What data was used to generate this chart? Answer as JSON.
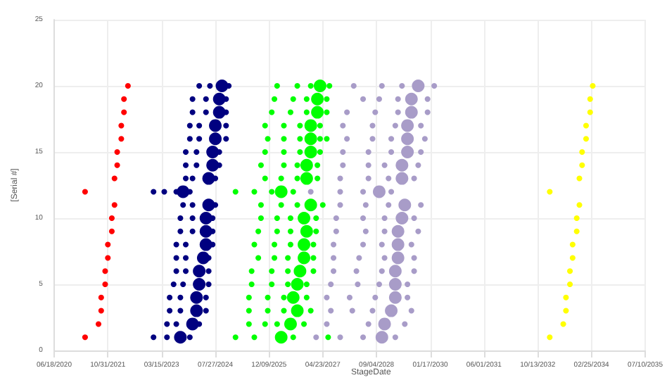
{
  "chart_data": {
    "type": "bubble",
    "xlabel": "StageDate",
    "ylabel": "[Serial #]",
    "xlim": [
      "2020-06-18",
      "2035-07-10"
    ],
    "xticks": [
      {
        "value": "2020-06-18",
        "label": "06/18/2020"
      },
      {
        "value": "2021-10-31",
        "label": "10/31/2021"
      },
      {
        "value": "2023-03-15",
        "label": "03/15/2023"
      },
      {
        "value": "2024-07-27",
        "label": "07/27/2024"
      },
      {
        "value": "2025-12-09",
        "label": "12/09/2025"
      },
      {
        "value": "2027-04-23",
        "label": "04/23/2027"
      },
      {
        "value": "2028-09-04",
        "label": "09/04/2028"
      },
      {
        "value": "2030-01-17",
        "label": "01/17/2030"
      },
      {
        "value": "2031-06-01",
        "label": "06/01/2031"
      },
      {
        "value": "2032-10-13",
        "label": "10/13/2032"
      },
      {
        "value": "2034-02-25",
        "label": "02/25/2034"
      },
      {
        "value": "2035-07-10",
        "label": "07/10/2035"
      }
    ],
    "ylim": [
      0,
      25
    ],
    "yticks": [
      0,
      5,
      10,
      15,
      20,
      25
    ],
    "grid": true,
    "series": [
      {
        "color": "#ff0000",
        "x": [
          "2021-04-02",
          "2021-08-05",
          "2021-08-30",
          "2021-08-30",
          "2021-10-06",
          "2021-10-06",
          "2021-10-31",
          "2021-10-31",
          "2021-12-07",
          "2021-12-07",
          "2022-01-01",
          "2021-04-02",
          "2022-01-01",
          "2022-01-26",
          "2022-01-26",
          "2022-03-05",
          "2022-03-05",
          "2022-03-30",
          "2022-03-30",
          "2022-05-06"
        ],
        "values": [
          1,
          2,
          3,
          4,
          5,
          6,
          7,
          8,
          9,
          10,
          11,
          12,
          13,
          14,
          15,
          16,
          17,
          18,
          19,
          20
        ],
        "sizes": [
          0.2,
          0.2,
          0.2,
          0.2,
          0.2,
          0.2,
          0.2,
          0.2,
          0.2,
          0.2,
          0.2,
          0.2,
          0.2,
          0.2,
          0.2,
          0.2,
          0.2,
          0.2,
          0.2,
          0.2
        ]
      },
      {
        "color": "#000080",
        "x": [
          "2022-12-30",
          "2023-05-04",
          "2023-09-06",
          "2023-12-03",
          "2023-05-04",
          "2023-07-30",
          "2023-12-28",
          "2024-02-28",
          "2023-05-29",
          "2023-09-06",
          "2024-02-03",
          "2024-05-01",
          "2023-05-29",
          "2023-09-06",
          "2024-02-03",
          "2024-05-01",
          "2023-07-05",
          "2023-10-01",
          "2024-02-28",
          "2024-05-26",
          "2023-07-30",
          "2023-10-26",
          "2024-02-28",
          "2024-05-26",
          "2023-07-30",
          "2023-10-26",
          "2024-04-06",
          "2024-05-26",
          "2023-07-30",
          "2023-10-26",
          "2024-05-01",
          "2024-07-02",
          "2023-09-06",
          "2023-12-28",
          "2024-05-01",
          "2024-07-02",
          "2023-09-06",
          "2023-12-28",
          "2024-05-01",
          "2024-07-02",
          "2023-10-01",
          "2023-12-28",
          "2024-05-26",
          "2024-07-27",
          "2022-12-30",
          "2023-04-09",
          "2023-07-30",
          "2023-10-01",
          "2023-12-03",
          "2023-10-26",
          "2023-12-28",
          "2024-05-26",
          "2024-07-27",
          "2023-10-26",
          "2024-02-03",
          "2024-07-02",
          "2024-09-02",
          "2023-10-26",
          "2024-02-03",
          "2024-07-02",
          "2024-09-02",
          "2023-12-03",
          "2024-02-28",
          "2024-07-27",
          "2024-11-04",
          "2023-12-03",
          "2024-02-28",
          "2024-07-27",
          "2024-11-04",
          "2023-12-28",
          "2024-05-01",
          "2024-09-02",
          "2024-11-04",
          "2023-12-28",
          "2024-05-01",
          "2024-09-02",
          "2024-11-04",
          "2024-02-28",
          "2024-06-07",
          "2024-09-27",
          "2024-11-29"
        ],
        "values": [
          1,
          1,
          1,
          1,
          2,
          2,
          2,
          2,
          3,
          3,
          3,
          3,
          4,
          4,
          4,
          4,
          5,
          5,
          5,
          5,
          6,
          6,
          6,
          6,
          7,
          7,
          7,
          7,
          8,
          8,
          8,
          8,
          9,
          9,
          9,
          9,
          10,
          10,
          10,
          10,
          11,
          11,
          11,
          11,
          12,
          12,
          12,
          12,
          12,
          13,
          13,
          13,
          13,
          14,
          14,
          14,
          14,
          15,
          15,
          15,
          15,
          16,
          16,
          16,
          16,
          17,
          17,
          17,
          17,
          18,
          18,
          18,
          18,
          19,
          19,
          19,
          19,
          20,
          20,
          20,
          20
        ],
        "sizes": [
          0.2,
          0.2,
          1,
          0.2,
          0.2,
          0.2,
          1,
          0.2,
          0.2,
          0.2,
          1,
          0.2,
          0.2,
          0.2,
          1,
          0.2,
          0.2,
          0.2,
          1,
          0.2,
          0.2,
          0.2,
          1,
          0.2,
          0.2,
          0.2,
          1,
          0.2,
          0.2,
          0.2,
          1,
          0.2,
          0.2,
          0.2,
          1,
          0.2,
          0.2,
          0.2,
          1,
          0.2,
          0.2,
          0.2,
          1,
          0.2,
          0.2,
          0.2,
          0.2,
          1,
          0.2,
          0.2,
          0.2,
          1,
          0.2,
          0.2,
          0.2,
          1,
          0.2,
          0.2,
          0.2,
          1,
          0.2,
          0.2,
          0.2,
          1,
          0.2,
          0.2,
          0.2,
          1,
          0.2,
          0.2,
          0.2,
          1,
          0.2,
          0.2,
          0.2,
          1,
          0.2,
          0.2,
          0.2,
          1,
          0.2
        ]
      },
      {
        "color": "#00ff00",
        "x": [
          "2025-01-31",
          "2025-07-25",
          "2026-04-01",
          "2026-07-22",
          "2027-06-12",
          "2025-06-05",
          "2025-11-02",
          "2026-02-22",
          "2026-06-27",
          "2026-10-30",
          "2025-06-05",
          "2025-11-27",
          "2026-04-26",
          "2026-08-29",
          "2027-01-01",
          "2025-06-05",
          "2025-11-27",
          "2026-04-26",
          "2026-07-22",
          "2026-11-24",
          "2025-06-30",
          "2026-01-03",
          "2026-06-02",
          "2026-08-29",
          "2026-11-24",
          "2025-06-30",
          "2026-01-03",
          "2026-06-02",
          "2026-09-23",
          "2027-01-26",
          "2025-08-31",
          "2026-01-28",
          "2026-06-02",
          "2026-10-30",
          "2027-01-26",
          "2025-07-25",
          "2026-01-28",
          "2026-06-27",
          "2026-10-30",
          "2027-01-26",
          "2025-08-31",
          "2026-02-22",
          "2026-06-27",
          "2026-11-24",
          "2027-02-20",
          "2025-09-25",
          "2026-02-22",
          "2026-06-27",
          "2026-10-30",
          "2027-02-20",
          "2025-09-25",
          "2026-04-01",
          "2026-08-29",
          "2027-01-01",
          "2027-04-23",
          "2025-01-31",
          "2025-07-25",
          "2026-01-03",
          "2026-04-01",
          "2026-07-22",
          "2025-11-02",
          "2026-04-01",
          "2026-08-29",
          "2026-11-24",
          "2027-03-04",
          "2025-09-25",
          "2026-04-26",
          "2026-08-29",
          "2026-11-24",
          "2027-03-04",
          "2025-11-02",
          "2026-04-26",
          "2026-09-23",
          "2027-01-01",
          "2027-03-29",
          "2025-11-27",
          "2026-04-26",
          "2026-09-23",
          "2027-01-01",
          "2027-03-29",
          "2027-05-30",
          "2025-11-02",
          "2026-04-26",
          "2026-09-23",
          "2027-01-01",
          "2027-03-29",
          "2026-01-03",
          "2026-06-27",
          "2026-11-24",
          "2027-03-04",
          "2027-05-30",
          "2026-01-28",
          "2026-07-22",
          "2026-11-24",
          "2027-03-04",
          "2027-05-30",
          "2026-02-22",
          "2026-08-29",
          "2027-01-01",
          "2027-03-29",
          "2027-06-24"
        ],
        "values": [
          1,
          1,
          1,
          1,
          1,
          2,
          2,
          2,
          2,
          2,
          3,
          3,
          3,
          3,
          3,
          4,
          4,
          4,
          4,
          4,
          5,
          5,
          5,
          5,
          5,
          6,
          6,
          6,
          6,
          6,
          7,
          7,
          7,
          7,
          7,
          8,
          8,
          8,
          8,
          8,
          9,
          9,
          9,
          9,
          9,
          10,
          10,
          10,
          10,
          10,
          11,
          11,
          11,
          11,
          11,
          12,
          12,
          12,
          12,
          12,
          13,
          13,
          13,
          13,
          13,
          14,
          14,
          14,
          14,
          14,
          15,
          15,
          15,
          15,
          15,
          16,
          16,
          16,
          16,
          16,
          16,
          17,
          17,
          17,
          17,
          17,
          18,
          18,
          18,
          18,
          18,
          19,
          19,
          19,
          19,
          19,
          20,
          20,
          20,
          20,
          20
        ],
        "sizes": [
          0.2,
          0.2,
          1,
          0.2,
          0.2,
          0.2,
          0.2,
          0.2,
          1,
          0.2,
          0.2,
          0.2,
          0.2,
          1,
          0.2,
          0.2,
          0.2,
          0.2,
          1,
          0.2,
          0.2,
          0.2,
          0.2,
          1,
          0.2,
          0.2,
          0.2,
          0.2,
          1,
          0.2,
          0.2,
          0.2,
          0.2,
          1,
          0.2,
          0.2,
          0.2,
          0.2,
          1,
          0.2,
          0.2,
          0.2,
          0.2,
          1,
          0.2,
          0.2,
          0.2,
          0.2,
          1,
          0.2,
          0.2,
          0.2,
          0.2,
          1,
          0.2,
          0.2,
          0.2,
          0.2,
          1,
          0.2,
          0.2,
          0.2,
          0.2,
          1,
          0.2,
          0.2,
          0.2,
          0.2,
          1,
          0.2,
          0.2,
          0.2,
          0.2,
          1,
          0.2,
          0.2,
          0.2,
          0.2,
          1,
          0.2,
          0.2,
          0.2,
          0.2,
          0.2,
          1,
          0.2,
          0.2,
          0.2,
          0.2,
          1,
          0.2,
          0.2,
          0.2,
          0.2,
          1,
          0.2,
          0.2,
          0.2,
          0.2,
          1,
          0.2
        ]
      },
      {
        "color": "#a89cc8",
        "x": [
          "2027-02-20",
          "2027-10-02",
          "2028-05-02",
          "2028-10-24",
          "2029-02-26",
          "2027-05-30",
          "2028-06-21",
          "2028-11-18",
          "2029-05-25",
          "2027-07-07",
          "2028-01-23",
          "2028-07-29",
          "2029-01-19",
          "2029-07-26",
          "2027-05-30",
          "2027-12-29",
          "2028-08-23",
          "2029-02-26",
          "2029-06-19",
          "2027-07-07",
          "2028-03-13",
          "2028-09-29",
          "2029-02-26",
          "2029-06-19",
          "2027-08-01",
          "2028-03-01",
          "2028-10-24",
          "2029-02-26",
          "2029-08-20",
          "2027-08-01",
          "2028-03-26",
          "2028-11-18",
          "2029-03-23",
          "2029-08-20",
          "2027-08-01",
          "2028-05-02",
          "2028-10-24",
          "2029-03-23",
          "2029-07-26",
          "2027-08-26",
          "2028-05-27",
          "2028-11-18",
          "2029-03-23",
          "2029-09-27",
          "2027-08-26",
          "2028-05-02",
          "2028-11-18",
          "2029-04-29",
          "2029-08-20",
          "2027-10-02",
          "2028-05-27",
          "2028-12-25",
          "2029-05-25",
          "2029-10-22",
          "2027-01-01",
          "2027-10-02",
          "2028-05-02",
          "2028-09-29",
          "2029-01-19",
          "2027-10-02",
          "2028-06-21",
          "2028-12-25",
          "2029-04-29",
          "2029-08-20",
          "2027-10-27",
          "2028-06-21",
          "2028-11-18",
          "2029-04-29",
          "2029-09-27",
          "2027-10-27",
          "2028-06-21",
          "2029-01-19",
          "2029-06-19",
          "2029-10-22",
          "2027-12-04",
          "2028-07-29",
          "2029-01-19",
          "2029-06-19",
          "2029-11-28",
          "2027-10-27",
          "2028-07-29",
          "2029-02-26",
          "2029-06-19",
          "2029-10-22",
          "2027-12-04",
          "2028-08-23",
          "2029-03-23",
          "2029-07-26",
          "2029-12-23",
          "2028-05-02",
          "2028-09-29",
          "2029-03-23",
          "2029-07-26",
          "2029-12-23",
          "2028-02-05",
          "2028-10-24",
          "2029-04-29",
          "2029-09-27",
          "2030-02-23"
        ],
        "values": [
          1,
          1,
          1,
          1,
          1,
          2,
          2,
          2,
          2,
          3,
          3,
          3,
          3,
          3,
          4,
          4,
          4,
          4,
          4,
          5,
          5,
          5,
          5,
          5,
          6,
          6,
          6,
          6,
          6,
          7,
          7,
          7,
          7,
          7,
          8,
          8,
          8,
          8,
          8,
          9,
          9,
          9,
          9,
          9,
          10,
          10,
          10,
          10,
          10,
          11,
          11,
          11,
          11,
          11,
          12,
          12,
          12,
          12,
          12,
          13,
          13,
          13,
          13,
          13,
          14,
          14,
          14,
          14,
          14,
          15,
          15,
          15,
          15,
          15,
          16,
          16,
          16,
          16,
          16,
          17,
          17,
          17,
          17,
          17,
          18,
          18,
          18,
          18,
          18,
          19,
          19,
          19,
          19,
          19,
          20,
          20,
          20,
          20,
          20
        ],
        "sizes": [
          0.2,
          0.2,
          0.2,
          1,
          0.2,
          0.2,
          0.2,
          1,
          0.2,
          0.2,
          0.2,
          0.2,
          1,
          0.2,
          0.2,
          0.2,
          0.2,
          1,
          0.2,
          0.2,
          0.2,
          0.2,
          1,
          0.2,
          0.2,
          0.2,
          0.2,
          1,
          0.2,
          0.2,
          0.2,
          0.2,
          1,
          0.2,
          0.2,
          0.2,
          0.2,
          1,
          0.2,
          0.2,
          0.2,
          0.2,
          1,
          0.2,
          0.2,
          0.2,
          0.2,
          1,
          0.2,
          0.2,
          0.2,
          0.2,
          1,
          0.2,
          0.2,
          0.2,
          0.2,
          1,
          0.2,
          0.2,
          0.2,
          0.2,
          1,
          0.2,
          0.2,
          0.2,
          0.2,
          1,
          0.2,
          0.2,
          0.2,
          0.2,
          1,
          0.2,
          0.2,
          0.2,
          0.2,
          1,
          0.2,
          0.2,
          0.2,
          0.2,
          1,
          0.2,
          0.2,
          0.2,
          0.2,
          1,
          0.2,
          0.2,
          0.2,
          0.2,
          1,
          0.2,
          0.2,
          0.2,
          0.2,
          1,
          0.2
        ]
      },
      {
        "color": "#ffff00",
        "x": [
          "2033-02-02",
          "2033-06-08",
          "2033-07-03",
          "2033-07-03",
          "2033-08-09",
          "2033-08-09",
          "2033-09-03",
          "2033-09-03",
          "2033-10-11",
          "2033-10-11",
          "2033-11-05",
          "2033-02-02",
          "2033-11-05",
          "2033-11-30",
          "2033-11-30",
          "2034-01-06",
          "2034-01-06",
          "2034-02-13",
          "2034-02-13",
          "2034-03-09"
        ],
        "values": [
          1,
          2,
          3,
          4,
          5,
          6,
          7,
          8,
          9,
          10,
          11,
          12,
          13,
          14,
          15,
          16,
          17,
          18,
          19,
          20
        ],
        "sizes": [
          0.2,
          0.2,
          0.2,
          0.2,
          0.2,
          0.2,
          0.2,
          0.2,
          0.2,
          0.2,
          0.2,
          0.2,
          0.2,
          0.2,
          0.2,
          0.2,
          0.2,
          0.2,
          0.2,
          0.2
        ]
      }
    ]
  }
}
